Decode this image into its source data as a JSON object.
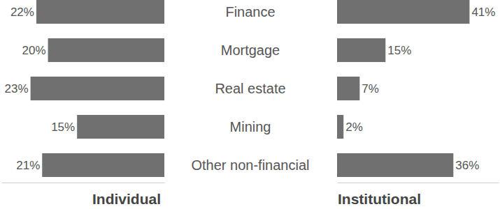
{
  "chart_data": [
    {
      "type": "bar",
      "orientation": "horizontal",
      "title": "Individual",
      "categories": [
        "Finance",
        "Mortgage",
        "Real estate",
        "Mining",
        "Other non-financial"
      ],
      "values": [
        22,
        20,
        23,
        15,
        21
      ],
      "value_labels": [
        "22%",
        "20%",
        "23%",
        "15%",
        "21%"
      ],
      "color": "#707070",
      "xlim": [
        0,
        28
      ],
      "data_labels": true,
      "tick_labels": false
    },
    {
      "type": "bar",
      "orientation": "horizontal",
      "title": "Institutional",
      "categories": [
        "Finance",
        "Mortgage",
        "Real estate",
        "Mining",
        "Other non-financial"
      ],
      "values": [
        41,
        15,
        7,
        2,
        36
      ],
      "value_labels": [
        "41%",
        "15%",
        "7%",
        "2%",
        "36%"
      ],
      "color": "#707070",
      "xlim": [
        0,
        50
      ],
      "data_labels": true,
      "tick_labels": false
    }
  ]
}
